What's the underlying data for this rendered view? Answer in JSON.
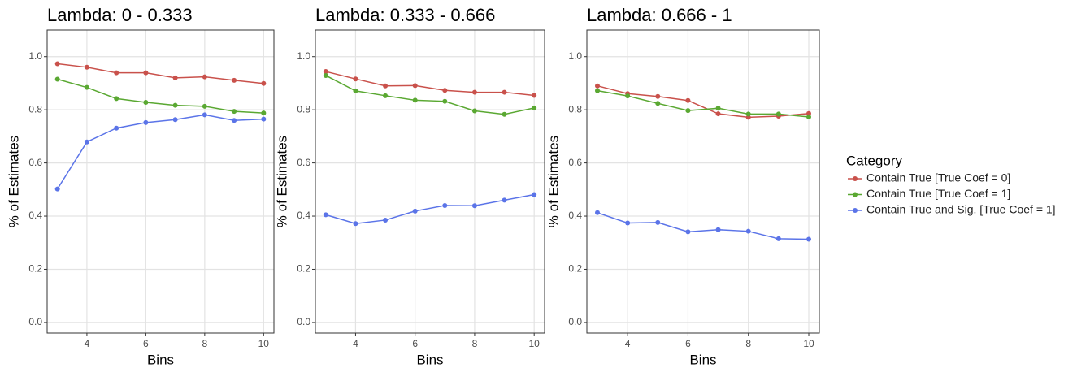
{
  "chart_data": [
    {
      "type": "line",
      "title": "Lambda: 0 - 0.333",
      "x_label": "Bins",
      "y_label": "% of  Estimates",
      "legend_title": "Category",
      "x": [
        3,
        4,
        5,
        6,
        7,
        8,
        9,
        10
      ],
      "xlim": [
        2.65,
        10.35
      ],
      "xticks": [
        4,
        6,
        8,
        10
      ],
      "ylim": [
        -0.04,
        1.1
      ],
      "yticks": [
        {
          "value": 0,
          "label": "0.0"
        },
        {
          "value": 0.2,
          "label": "0.2"
        },
        {
          "value": 0.4,
          "label": "0.4"
        },
        {
          "value": 0.6,
          "label": "0.6"
        },
        {
          "value": 0.8,
          "label": "0.8"
        },
        {
          "value": 1,
          "label": "1.0"
        }
      ],
      "grid": true,
      "series": [
        {
          "name": "Contain True [True Coef = 0]",
          "color": "#c9514b",
          "values": [
            0.973,
            0.96,
            0.939,
            0.939,
            0.92,
            0.924,
            0.911,
            0.899
          ]
        },
        {
          "name": "Contain True [True Coef = 1]",
          "color": "#5aa832",
          "values": [
            0.915,
            0.884,
            0.842,
            0.828,
            0.817,
            0.813,
            0.794,
            0.788
          ]
        },
        {
          "name": "Contain True and Sig. [True Coef = 1]",
          "color": "#5b74e8",
          "values": [
            0.502,
            0.679,
            0.731,
            0.752,
            0.763,
            0.781,
            0.76,
            0.765
          ]
        }
      ]
    },
    {
      "type": "line",
      "title": "Lambda: 0.333 - 0.666",
      "x_label": "Bins",
      "y_label": "% of  Estimates",
      "x": [
        3,
        4,
        5,
        6,
        7,
        8,
        9,
        10
      ],
      "xlim": [
        2.65,
        10.35
      ],
      "xticks": [
        4,
        6,
        8,
        10
      ],
      "ylim": [
        -0.04,
        1.1
      ],
      "yticks": [
        {
          "value": 0,
          "label": "0.0"
        },
        {
          "value": 0.2,
          "label": "0.2"
        },
        {
          "value": 0.4,
          "label": "0.4"
        },
        {
          "value": 0.6,
          "label": "0.6"
        },
        {
          "value": 0.8,
          "label": "0.8"
        },
        {
          "value": 1,
          "label": "1.0"
        }
      ],
      "grid": true,
      "series": [
        {
          "name": "Contain True [True Coef = 0]",
          "color": "#c9514b",
          "values": [
            0.944,
            0.916,
            0.89,
            0.891,
            0.873,
            0.866,
            0.866,
            0.854
          ]
        },
        {
          "name": "Contain True [True Coef = 1]",
          "color": "#5aa832",
          "values": [
            0.929,
            0.871,
            0.853,
            0.836,
            0.832,
            0.796,
            0.783,
            0.807
          ]
        },
        {
          "name": "Contain True and Sig. [True Coef = 1]",
          "color": "#5b74e8",
          "values": [
            0.405,
            0.372,
            0.385,
            0.419,
            0.44,
            0.439,
            0.46,
            0.481
          ]
        }
      ]
    },
    {
      "type": "line",
      "title": "Lambda: 0.666 - 1",
      "x_label": "Bins",
      "y_label": "% of  Estimates",
      "x": [
        3,
        4,
        5,
        6,
        7,
        8,
        9,
        10
      ],
      "xlim": [
        2.65,
        10.35
      ],
      "xticks": [
        4,
        6,
        8,
        10
      ],
      "ylim": [
        -0.04,
        1.1
      ],
      "yticks": [
        {
          "value": 0,
          "label": "0.0"
        },
        {
          "value": 0.2,
          "label": "0.2"
        },
        {
          "value": 0.4,
          "label": "0.4"
        },
        {
          "value": 0.6,
          "label": "0.6"
        },
        {
          "value": 0.8,
          "label": "0.8"
        },
        {
          "value": 1,
          "label": "1.0"
        }
      ],
      "grid": true,
      "series": [
        {
          "name": "Contain True [True Coef = 0]",
          "color": "#c9514b",
          "values": [
            0.89,
            0.861,
            0.85,
            0.835,
            0.785,
            0.772,
            0.776,
            0.786
          ]
        },
        {
          "name": "Contain True [True Coef = 1]",
          "color": "#5aa832",
          "values": [
            0.872,
            0.852,
            0.824,
            0.797,
            0.806,
            0.784,
            0.784,
            0.773
          ]
        },
        {
          "name": "Contain True and Sig. [True Coef = 1]",
          "color": "#5b74e8",
          "values": [
            0.413,
            0.374,
            0.376,
            0.341,
            0.349,
            0.343,
            0.315,
            0.313
          ]
        }
      ]
    }
  ]
}
